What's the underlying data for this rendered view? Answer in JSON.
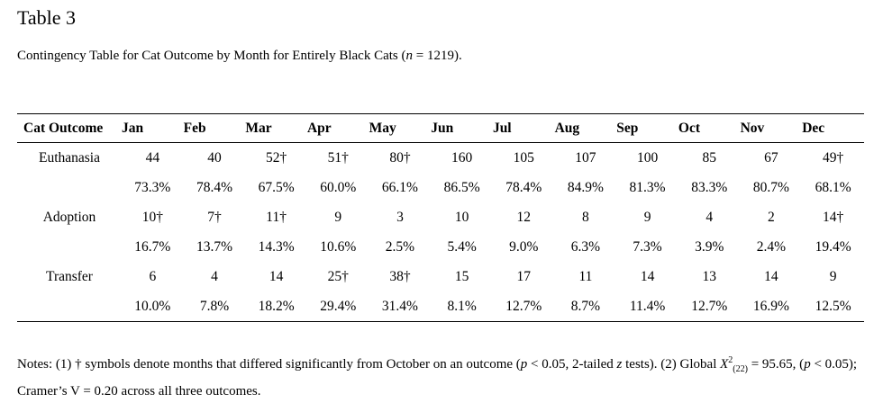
{
  "heading": "Table 3",
  "caption": {
    "prefix": "Contingency Table for Cat Outcome by Month for Entirely Black Cats (",
    "n_symbol": "n",
    "n_value": " = 1219)."
  },
  "table": {
    "outcome_header": "Cat Outcome",
    "months": [
      "Jan",
      "Feb",
      "Mar",
      "Apr",
      "May",
      "Jun",
      "Jul",
      "Aug",
      "Sep",
      "Oct",
      "Nov",
      "Dec"
    ],
    "rows": [
      {
        "label": "Euthanasia",
        "counts": [
          "44",
          "40",
          "52†",
          "51†",
          "80†",
          "160",
          "105",
          "107",
          "100",
          "85",
          "67",
          "49†"
        ],
        "percents": [
          "73.3%",
          "78.4%",
          "67.5%",
          "60.0%",
          "66.1%",
          "86.5%",
          "78.4%",
          "84.9%",
          "81.3%",
          "83.3%",
          "80.7%",
          "68.1%"
        ]
      },
      {
        "label": "Adoption",
        "counts": [
          "10†",
          "7†",
          "11†",
          "9",
          "3",
          "10",
          "12",
          "8",
          "9",
          "4",
          "2",
          "14†"
        ],
        "percents": [
          "16.7%",
          "13.7%",
          "14.3%",
          "10.6%",
          "2.5%",
          "5.4%",
          "9.0%",
          "6.3%",
          "7.3%",
          "3.9%",
          "2.4%",
          "19.4%"
        ]
      },
      {
        "label": "Transfer",
        "counts": [
          "6",
          "4",
          "14",
          "25†",
          "38†",
          "15",
          "17",
          "11",
          "14",
          "13",
          "14",
          "9"
        ],
        "percents": [
          "10.0%",
          "7.8%",
          "18.2%",
          "29.4%",
          "31.4%",
          "8.1%",
          "12.7%",
          "8.7%",
          "11.4%",
          "12.7%",
          "16.9%",
          "12.5%"
        ]
      }
    ]
  },
  "notes": {
    "part1": "Notes: (1) † symbols denote months that differed significantly from October on an outcome (",
    "p_symbol": "p",
    "part2": " < 0.05, 2-tailed ",
    "z_symbol": "z",
    "part3": " tests). (2) Global ",
    "chi_symbol": "X",
    "chi_sup": "2",
    "chi_sub": "(22)",
    "part4": " = 95.65, (",
    "p_symbol2": "p",
    "part5": " < 0.05); Cramer’s V = 0.20 across all three outcomes."
  }
}
